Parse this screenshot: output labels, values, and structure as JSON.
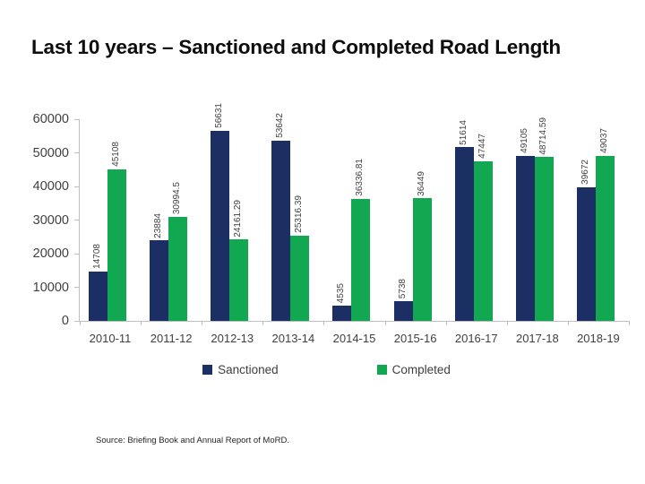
{
  "slide": {
    "title": "Last 10 years – Sanctioned and Completed Road Length",
    "source_note": "Source: Briefing Book and Annual Report of MoRD."
  },
  "chart_data": {
    "type": "bar",
    "title": "Last 10 years – Sanctioned and Completed Road Length",
    "categories": [
      "2010-11",
      "2011-12",
      "2012-13",
      "2013-14",
      "2014-15",
      "2015-16",
      "2016-17",
      "2017-18",
      "2018-19"
    ],
    "series": [
      {
        "name": "Sanctioned",
        "color": "#1B2F64",
        "values": [
          14708,
          23884,
          56631,
          53642,
          4535,
          5738,
          51614,
          49105,
          39672
        ],
        "data_labels": [
          "14708",
          "23884",
          "56631",
          "53642",
          "4535",
          "5738",
          "51614",
          "49105",
          "39672"
        ]
      },
      {
        "name": "Completed",
        "color": "#12A852",
        "values": [
          45108,
          30994.5,
          24161.29,
          25316.39,
          36336.81,
          36449,
          47447,
          48714.59,
          49037
        ],
        "data_labels": [
          "45108",
          "30994.5",
          "24161.29",
          "25316.39",
          "36336.81",
          "36449",
          "47447",
          "48714.59",
          "49037"
        ]
      }
    ],
    "xlabel": "",
    "ylabel": "",
    "ylim": [
      0,
      60000
    ],
    "ytick_step": 10000,
    "ytick_labels": [
      "0",
      "10000",
      "20000",
      "30000",
      "40000",
      "50000",
      "60000"
    ],
    "grid": false,
    "legend_position": "bottom",
    "axis_color": "#bfbfbf",
    "text_color": "#404040"
  }
}
